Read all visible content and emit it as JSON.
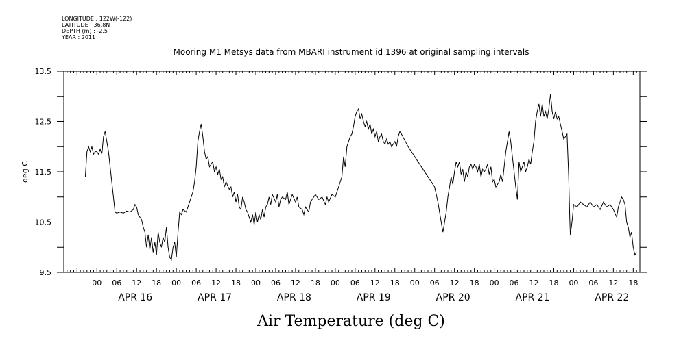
{
  "header": {
    "meta_lines": [
      "LONGITUDE : 122W(-122)",
      "LATITUDE : 36.8N",
      "DEPTH (m) : -2.5",
      "YEAR : 2011"
    ]
  },
  "chart_data": {
    "type": "line",
    "title": "Mooring M1 Metsys data from MBARI instrument id 1396 at original sampling intervals",
    "xlabel": "Air Temperature (deg C)",
    "ylabel": "deg C",
    "ylim": [
      9.5,
      13.5
    ],
    "xlim": [
      -10,
      164
    ],
    "x_unit": "hours from APR 16 00:00, 2011",
    "y_ticks": [
      "9.5",
      "10.5",
      "11.5",
      "12.5",
      "13.5"
    ],
    "x_tick_labels": [
      "00",
      "06",
      "12",
      "18",
      "00",
      "06",
      "12",
      "18",
      "00",
      "06",
      "12",
      "18",
      "00",
      "06",
      "12",
      "18",
      "00",
      "06",
      "12",
      "18",
      "00",
      "06",
      "12",
      "18",
      "00",
      "06",
      "12",
      "18"
    ],
    "day_labels": [
      "APR 16",
      "APR 17",
      "APR 18",
      "APR 19",
      "APR 20",
      "APR 21",
      "APR 22"
    ],
    "grid": false,
    "series": [
      {
        "color": "#000000",
        "points": [
          [
            -3.5,
            11.4
          ],
          [
            -3.0,
            11.9
          ],
          [
            -2.5,
            12.0
          ],
          [
            -2.0,
            11.9
          ],
          [
            -1.5,
            12.0
          ],
          [
            -1.0,
            11.85
          ],
          [
            -0.5,
            11.9
          ],
          [
            0.0,
            11.9
          ],
          [
            0.5,
            11.85
          ],
          [
            1.0,
            11.95
          ],
          [
            1.5,
            11.85
          ],
          [
            2.0,
            12.2
          ],
          [
            2.5,
            12.3
          ],
          [
            3.0,
            12.1
          ],
          [
            3.5,
            11.9
          ],
          [
            4.0,
            11.6
          ],
          [
            4.5,
            11.3
          ],
          [
            5.0,
            11.0
          ],
          [
            5.5,
            10.7
          ],
          [
            6.0,
            10.68
          ],
          [
            7.0,
            10.7
          ],
          [
            8.0,
            10.68
          ],
          [
            9.0,
            10.72
          ],
          [
            10.0,
            10.7
          ],
          [
            11.0,
            10.75
          ],
          [
            11.5,
            10.85
          ],
          [
            12.0,
            10.8
          ],
          [
            12.5,
            10.65
          ],
          [
            13.0,
            10.6
          ],
          [
            13.5,
            10.55
          ],
          [
            14.0,
            10.4
          ],
          [
            14.5,
            10.3
          ],
          [
            15.0,
            10.0
          ],
          [
            15.5,
            10.25
          ],
          [
            16.0,
            9.95
          ],
          [
            16.5,
            10.2
          ],
          [
            17.0,
            9.9
          ],
          [
            17.5,
            10.1
          ],
          [
            18.0,
            9.85
          ],
          [
            18.5,
            10.3
          ],
          [
            19.0,
            10.1
          ],
          [
            19.5,
            10.0
          ],
          [
            20.0,
            10.2
          ],
          [
            20.5,
            10.1
          ],
          [
            21.0,
            10.4
          ],
          [
            21.5,
            10.0
          ],
          [
            22.0,
            9.8
          ],
          [
            22.5,
            9.75
          ],
          [
            23.0,
            10.0
          ],
          [
            23.5,
            10.1
          ],
          [
            24.0,
            9.8
          ],
          [
            24.5,
            10.3
          ],
          [
            25.0,
            10.7
          ],
          [
            25.5,
            10.65
          ],
          [
            26.0,
            10.75
          ],
          [
            27.0,
            10.7
          ],
          [
            28.0,
            10.9
          ],
          [
            29.0,
            11.1
          ],
          [
            29.5,
            11.3
          ],
          [
            30.0,
            11.6
          ],
          [
            30.5,
            12.1
          ],
          [
            31.0,
            12.3
          ],
          [
            31.5,
            12.45
          ],
          [
            32.0,
            12.2
          ],
          [
            32.5,
            11.9
          ],
          [
            33.0,
            11.75
          ],
          [
            33.5,
            11.8
          ],
          [
            34.0,
            11.6
          ],
          [
            35.0,
            11.7
          ],
          [
            35.5,
            11.5
          ],
          [
            36.0,
            11.6
          ],
          [
            36.5,
            11.45
          ],
          [
            37.0,
            11.55
          ],
          [
            37.5,
            11.35
          ],
          [
            38.0,
            11.4
          ],
          [
            38.5,
            11.2
          ],
          [
            39.0,
            11.3
          ],
          [
            40.0,
            11.15
          ],
          [
            40.5,
            11.2
          ],
          [
            41.0,
            11.0
          ],
          [
            41.5,
            11.1
          ],
          [
            42.0,
            10.9
          ],
          [
            42.5,
            11.05
          ],
          [
            43.0,
            10.8
          ],
          [
            43.5,
            10.75
          ],
          [
            44.0,
            11.0
          ],
          [
            44.5,
            10.9
          ],
          [
            45.0,
            10.75
          ],
          [
            45.5,
            10.7
          ],
          [
            46.0,
            10.6
          ],
          [
            46.5,
            10.5
          ],
          [
            47.0,
            10.65
          ],
          [
            47.5,
            10.45
          ],
          [
            48.0,
            10.7
          ],
          [
            48.5,
            10.5
          ],
          [
            49.0,
            10.65
          ],
          [
            49.5,
            10.55
          ],
          [
            50.0,
            10.75
          ],
          [
            50.5,
            10.6
          ],
          [
            51.0,
            10.8
          ],
          [
            51.5,
            10.85
          ],
          [
            52.0,
            11.0
          ],
          [
            52.5,
            10.85
          ],
          [
            53.0,
            11.05
          ],
          [
            54.0,
            10.9
          ],
          [
            54.5,
            11.05
          ],
          [
            55.0,
            10.8
          ],
          [
            55.5,
            10.95
          ],
          [
            56.0,
            11.0
          ],
          [
            57.0,
            10.95
          ],
          [
            57.5,
            11.1
          ],
          [
            58.0,
            10.85
          ],
          [
            58.5,
            10.95
          ],
          [
            59.0,
            11.05
          ],
          [
            60.0,
            10.9
          ],
          [
            60.5,
            11.0
          ],
          [
            61.0,
            10.8
          ],
          [
            62.0,
            10.75
          ],
          [
            62.5,
            10.65
          ],
          [
            63.0,
            10.8
          ],
          [
            64.0,
            10.7
          ],
          [
            64.5,
            10.9
          ],
          [
            65.0,
            10.95
          ],
          [
            66.0,
            11.05
          ],
          [
            67.0,
            10.95
          ],
          [
            68.0,
            11.0
          ],
          [
            69.0,
            10.85
          ],
          [
            69.5,
            11.0
          ],
          [
            70.0,
            10.9
          ],
          [
            71.0,
            11.05
          ],
          [
            72.0,
            11.0
          ],
          [
            73.0,
            11.2
          ],
          [
            74.0,
            11.4
          ],
          [
            74.5,
            11.8
          ],
          [
            75.0,
            11.6
          ],
          [
            75.5,
            12.0
          ],
          [
            76.0,
            12.1
          ],
          [
            76.5,
            12.2
          ],
          [
            77.0,
            12.25
          ],
          [
            77.5,
            12.4
          ],
          [
            78.0,
            12.6
          ],
          [
            78.5,
            12.7
          ],
          [
            79.0,
            12.75
          ],
          [
            79.5,
            12.55
          ],
          [
            80.0,
            12.65
          ],
          [
            80.5,
            12.5
          ],
          [
            81.0,
            12.4
          ],
          [
            81.5,
            12.5
          ],
          [
            82.0,
            12.35
          ],
          [
            82.5,
            12.45
          ],
          [
            83.0,
            12.25
          ],
          [
            83.5,
            12.35
          ],
          [
            84.0,
            12.2
          ],
          [
            84.5,
            12.3
          ],
          [
            85.0,
            12.1
          ],
          [
            85.5,
            12.2
          ],
          [
            86.0,
            12.25
          ],
          [
            86.5,
            12.1
          ],
          [
            87.0,
            12.05
          ],
          [
            87.5,
            12.15
          ],
          [
            88.0,
            12.05
          ],
          [
            88.5,
            12.1
          ],
          [
            89.0,
            12.0
          ],
          [
            89.5,
            12.05
          ],
          [
            90.0,
            12.1
          ],
          [
            90.5,
            12.0
          ],
          [
            91.0,
            12.2
          ],
          [
            91.5,
            12.3
          ],
          [
            92.0,
            12.25
          ],
          [
            94.0,
            12.0
          ],
          [
            96.0,
            11.8
          ],
          [
            98.0,
            11.6
          ],
          [
            100.0,
            11.4
          ],
          [
            102.0,
            11.2
          ],
          [
            102.5,
            11.05
          ],
          [
            103.0,
            10.9
          ],
          [
            103.5,
            10.7
          ],
          [
            104.0,
            10.5
          ],
          [
            104.5,
            10.3
          ],
          [
            105.0,
            10.5
          ],
          [
            105.5,
            10.7
          ],
          [
            106.0,
            11.0
          ],
          [
            106.5,
            11.2
          ],
          [
            107.0,
            11.4
          ],
          [
            107.5,
            11.25
          ],
          [
            108.0,
            11.5
          ],
          [
            108.5,
            11.7
          ],
          [
            109.0,
            11.6
          ],
          [
            109.5,
            11.7
          ],
          [
            110.0,
            11.45
          ],
          [
            110.5,
            11.55
          ],
          [
            111.0,
            11.3
          ],
          [
            111.5,
            11.5
          ],
          [
            112.0,
            11.4
          ],
          [
            112.5,
            11.6
          ],
          [
            113.0,
            11.65
          ],
          [
            113.5,
            11.55
          ],
          [
            114.0,
            11.65
          ],
          [
            114.5,
            11.6
          ],
          [
            115.0,
            11.5
          ],
          [
            115.5,
            11.65
          ],
          [
            116.0,
            11.4
          ],
          [
            116.5,
            11.55
          ],
          [
            117.0,
            11.5
          ],
          [
            117.5,
            11.55
          ],
          [
            118.0,
            11.65
          ],
          [
            118.5,
            11.45
          ],
          [
            119.0,
            11.6
          ],
          [
            119.5,
            11.3
          ],
          [
            120.0,
            11.35
          ],
          [
            120.5,
            11.2
          ],
          [
            121.0,
            11.25
          ],
          [
            121.5,
            11.3
          ],
          [
            122.0,
            11.45
          ],
          [
            122.5,
            11.3
          ],
          [
            123.0,
            11.6
          ],
          [
            123.5,
            11.9
          ],
          [
            124.0,
            12.1
          ],
          [
            124.5,
            12.3
          ],
          [
            125.0,
            12.1
          ],
          [
            125.5,
            11.8
          ],
          [
            126.0,
            11.5
          ],
          [
            126.5,
            11.2
          ],
          [
            127.0,
            10.95
          ],
          [
            127.5,
            11.7
          ],
          [
            128.0,
            11.5
          ],
          [
            128.5,
            11.6
          ],
          [
            129.0,
            11.7
          ],
          [
            129.5,
            11.5
          ],
          [
            130.0,
            11.6
          ],
          [
            130.5,
            11.75
          ],
          [
            131.0,
            11.65
          ],
          [
            131.5,
            11.9
          ],
          [
            132.0,
            12.1
          ],
          [
            132.5,
            12.5
          ],
          [
            133.0,
            12.7
          ],
          [
            133.5,
            12.85
          ],
          [
            134.0,
            12.6
          ],
          [
            134.5,
            12.85
          ],
          [
            135.0,
            12.6
          ],
          [
            135.5,
            12.7
          ],
          [
            136.0,
            12.55
          ],
          [
            136.5,
            12.75
          ],
          [
            137.0,
            13.05
          ],
          [
            137.5,
            12.7
          ],
          [
            138.0,
            12.55
          ],
          [
            138.5,
            12.7
          ],
          [
            139.0,
            12.55
          ],
          [
            139.5,
            12.6
          ],
          [
            140.0,
            12.45
          ],
          [
            140.5,
            12.3
          ],
          [
            141.0,
            12.15
          ],
          [
            141.5,
            12.2
          ],
          [
            142.0,
            12.25
          ],
          [
            142.5,
            11.4
          ],
          [
            142.8,
            10.6
          ],
          [
            143.0,
            10.25
          ],
          [
            143.5,
            10.5
          ],
          [
            144.0,
            10.85
          ],
          [
            145.0,
            10.8
          ],
          [
            146.0,
            10.9
          ],
          [
            147.0,
            10.85
          ],
          [
            148.0,
            10.8
          ],
          [
            149.0,
            10.9
          ],
          [
            150.0,
            10.8
          ],
          [
            151.0,
            10.85
          ],
          [
            152.0,
            10.75
          ],
          [
            153.0,
            10.9
          ],
          [
            154.0,
            10.8
          ],
          [
            155.0,
            10.85
          ],
          [
            156.0,
            10.75
          ],
          [
            157.0,
            10.6
          ],
          [
            157.5,
            10.8
          ],
          [
            158.0,
            10.9
          ],
          [
            158.5,
            11.0
          ],
          [
            159.0,
            10.95
          ],
          [
            159.5,
            10.85
          ],
          [
            160.0,
            10.5
          ],
          [
            160.5,
            10.4
          ],
          [
            161.0,
            10.2
          ],
          [
            161.5,
            10.3
          ],
          [
            162.0,
            10.0
          ],
          [
            162.5,
            9.85
          ],
          [
            163.0,
            9.9
          ],
          [
            163.0,
            9.9
          ]
        ]
      }
    ]
  }
}
